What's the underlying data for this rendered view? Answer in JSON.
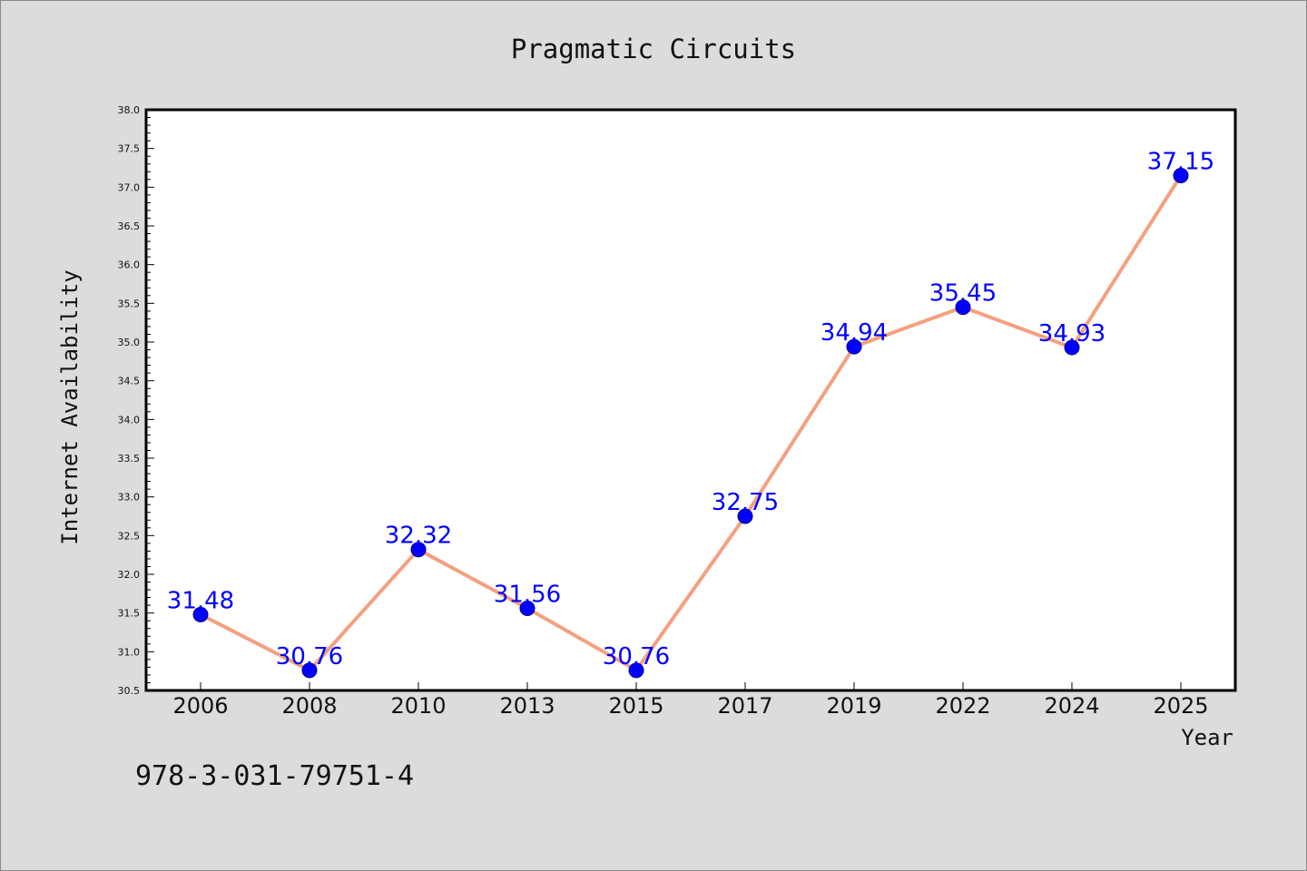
{
  "chart_data": {
    "type": "line",
    "title": "Pragmatic Circuits",
    "xlabel": "Year",
    "ylabel": "Internet Availability",
    "categories": [
      "2006",
      "2008",
      "2010",
      "2013",
      "2015",
      "2017",
      "2019",
      "2022",
      "2024",
      "2025"
    ],
    "series": [
      {
        "values": [
          31.48,
          30.76,
          32.32,
          31.56,
          30.76,
          32.75,
          34.94,
          35.45,
          34.93,
          37.15
        ]
      }
    ],
    "data_labels": [
      "31.48",
      "30.76",
      "32.32",
      "31.56",
      "30.76",
      "32.75",
      "34.94",
      "35.45",
      "34.93",
      "37.15"
    ],
    "y_ticks": [
      "30.5",
      "31.0",
      "31.5",
      "32.0",
      "32.5",
      "33.0",
      "33.5",
      "34.0",
      "34.5",
      "35.0",
      "35.5",
      "36.0",
      "36.5",
      "37.0",
      "37.5",
      "38.0"
    ],
    "ylim": [
      30.5,
      38.0
    ],
    "grid": false,
    "legend": "none",
    "line_color": "#f4a080",
    "marker_color": "#0000ff",
    "label_color": "#0000ff"
  },
  "footer": {
    "isbn": "978-3-031-79751-4"
  }
}
